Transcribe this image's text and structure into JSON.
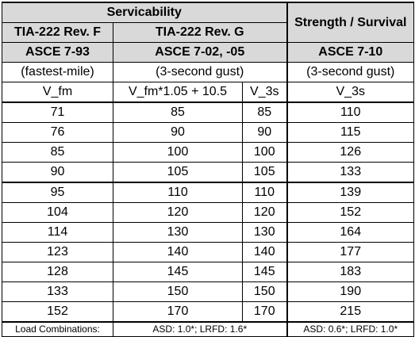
{
  "header": {
    "serviceability": "Servicability",
    "strength": "Strength / Survival",
    "tia_f": "TIA-222 Rev. F",
    "tia_g": "TIA-222 Rev. G",
    "asce_93": "ASCE 7-93",
    "asce_02_05": "ASCE 7-02, -05",
    "asce_10": "ASCE 7-10",
    "fastest_mile": "(fastest-mile)",
    "gust_g": "(3-second gust)",
    "gust_10": "(3-second gust)",
    "v_fm": "V_fm",
    "v_fm_formula": "V_fm*1.05 + 10.5",
    "v_3s_g": "V_3s",
    "v_3s_10": "V_3s"
  },
  "rows": [
    [
      "71",
      "85",
      "85",
      "110"
    ],
    [
      "76",
      "90",
      "90",
      "115"
    ],
    [
      "85",
      "100",
      "100",
      "126"
    ],
    [
      "90",
      "105",
      "105",
      "133"
    ],
    [
      "95",
      "110",
      "110",
      "139"
    ],
    [
      "104",
      "120",
      "120",
      "152"
    ],
    [
      "114",
      "130",
      "130",
      "164"
    ],
    [
      "123",
      "140",
      "140",
      "177"
    ],
    [
      "128",
      "145",
      "145",
      "183"
    ],
    [
      "133",
      "150",
      "150",
      "190"
    ],
    [
      "152",
      "170",
      "170",
      "215"
    ]
  ],
  "footer": {
    "label": "Load Combinations:",
    "g_combo": "ASD: 1.0*; LRFD: 1.6*",
    "asce10_combo": "ASD: 0.6*; LRFD: 1.0*"
  },
  "colors": {
    "header_fill": "#d9d9d9",
    "border": "#000000"
  }
}
